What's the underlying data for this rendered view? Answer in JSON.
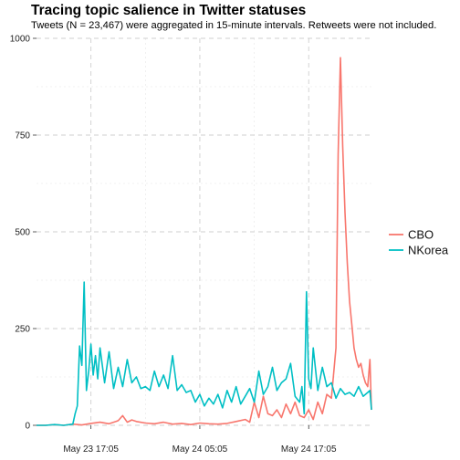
{
  "title": "Tracing topic salience in Twitter statuses",
  "subtitle": "Tweets (N = 23,467) were aggregated in 15-minute intervals. Retweets were not included.",
  "chart_data": {
    "type": "line",
    "title": "Tracing topic salience in Twitter statuses",
    "subtitle": "Tweets (N = 23,467) were aggregated in 15-minute intervals. Retweets were not included.",
    "xlabel": "",
    "ylabel": "",
    "ylim": [
      0,
      1000
    ],
    "xlim": [
      "2017-05-23 11:05",
      "2017-05-25 00:00"
    ],
    "y_ticks": [
      0,
      250,
      500,
      750,
      1000
    ],
    "y_tick_labels": [
      "0",
      "250",
      "500",
      "750",
      "1000"
    ],
    "x_ticks": [
      "2017-05-23 17:05",
      "2017-05-24 05:05",
      "2017-05-24 17:05"
    ],
    "x_tick_labels": [
      "May 23 17:05",
      "May 24 05:05",
      "May 24 17:05"
    ],
    "grid": true,
    "legend_position": "right",
    "series": [
      {
        "name": "CBO",
        "color": "#F8766D",
        "x": [
          "2017-05-23 11:05",
          "2017-05-23 12:05",
          "2017-05-23 13:05",
          "2017-05-23 14:05",
          "2017-05-23 15:05",
          "2017-05-23 16:05",
          "2017-05-23 17:05",
          "2017-05-23 18:05",
          "2017-05-23 19:05",
          "2017-05-23 20:05",
          "2017-05-23 20:35",
          "2017-05-23 21:05",
          "2017-05-23 21:35",
          "2017-05-23 22:05",
          "2017-05-23 23:05",
          "2017-05-24 00:05",
          "2017-05-24 01:05",
          "2017-05-24 02:05",
          "2017-05-24 03:05",
          "2017-05-24 04:05",
          "2017-05-24 05:05",
          "2017-05-24 06:05",
          "2017-05-24 07:05",
          "2017-05-24 08:05",
          "2017-05-24 09:05",
          "2017-05-24 10:05",
          "2017-05-24 10:35",
          "2017-05-24 11:05",
          "2017-05-24 11:35",
          "2017-05-24 12:05",
          "2017-05-24 12:35",
          "2017-05-24 13:05",
          "2017-05-24 13:35",
          "2017-05-24 14:05",
          "2017-05-24 14:35",
          "2017-05-24 15:05",
          "2017-05-24 15:35",
          "2017-05-24 16:05",
          "2017-05-24 16:35",
          "2017-05-24 17:05",
          "2017-05-24 17:35",
          "2017-05-24 18:05",
          "2017-05-24 18:35",
          "2017-05-24 19:05",
          "2017-05-24 19:35",
          "2017-05-24 20:05",
          "2017-05-24 20:20",
          "2017-05-24 20:35",
          "2017-05-24 20:50",
          "2017-05-24 21:05",
          "2017-05-24 21:20",
          "2017-05-24 21:35",
          "2017-05-24 21:50",
          "2017-05-24 22:05",
          "2017-05-24 22:20",
          "2017-05-24 22:35",
          "2017-05-24 22:50",
          "2017-05-24 23:05",
          "2017-05-24 23:20",
          "2017-05-24 23:35",
          "2017-05-24 23:50",
          "2017-05-25 00:00"
        ],
        "values": [
          0,
          0,
          2,
          0,
          3,
          1,
          5,
          8,
          4,
          12,
          25,
          8,
          14,
          10,
          6,
          4,
          8,
          3,
          5,
          2,
          6,
          4,
          3,
          5,
          10,
          15,
          8,
          60,
          20,
          75,
          30,
          25,
          40,
          20,
          55,
          30,
          60,
          25,
          20,
          40,
          15,
          60,
          30,
          80,
          70,
          200,
          700,
          950,
          720,
          550,
          420,
          320,
          260,
          200,
          170,
          150,
          160,
          130,
          110,
          100,
          170,
          40
        ]
      },
      {
        "name": "NKorea",
        "color": "#00BFC4",
        "x": [
          "2017-05-23 11:05",
          "2017-05-23 12:05",
          "2017-05-23 13:05",
          "2017-05-23 14:05",
          "2017-05-23 15:05",
          "2017-05-23 15:20",
          "2017-05-23 15:35",
          "2017-05-23 15:50",
          "2017-05-23 16:05",
          "2017-05-23 16:20",
          "2017-05-23 16:35",
          "2017-05-23 16:50",
          "2017-05-23 17:05",
          "2017-05-23 17:20",
          "2017-05-23 17:35",
          "2017-05-23 17:50",
          "2017-05-23 18:05",
          "2017-05-23 18:35",
          "2017-05-23 19:05",
          "2017-05-23 19:35",
          "2017-05-23 20:05",
          "2017-05-23 20:35",
          "2017-05-23 21:05",
          "2017-05-23 21:35",
          "2017-05-23 22:05",
          "2017-05-23 22:35",
          "2017-05-23 23:05",
          "2017-05-23 23:35",
          "2017-05-24 00:05",
          "2017-05-24 00:35",
          "2017-05-24 01:05",
          "2017-05-24 01:35",
          "2017-05-24 02:05",
          "2017-05-24 02:35",
          "2017-05-24 03:05",
          "2017-05-24 03:35",
          "2017-05-24 04:05",
          "2017-05-24 04:35",
          "2017-05-24 05:05",
          "2017-05-24 05:35",
          "2017-05-24 06:05",
          "2017-05-24 06:35",
          "2017-05-24 07:05",
          "2017-05-24 07:35",
          "2017-05-24 08:05",
          "2017-05-24 08:35",
          "2017-05-24 09:05",
          "2017-05-24 09:35",
          "2017-05-24 10:05",
          "2017-05-24 10:35",
          "2017-05-24 11:05",
          "2017-05-24 11:35",
          "2017-05-24 12:05",
          "2017-05-24 12:35",
          "2017-05-24 13:05",
          "2017-05-24 13:35",
          "2017-05-24 14:05",
          "2017-05-24 14:35",
          "2017-05-24 15:05",
          "2017-05-24 15:35",
          "2017-05-24 16:05",
          "2017-05-24 16:20",
          "2017-05-24 16:35",
          "2017-05-24 16:50",
          "2017-05-24 17:05",
          "2017-05-24 17:20",
          "2017-05-24 17:35",
          "2017-05-24 18:05",
          "2017-05-24 18:35",
          "2017-05-24 19:05",
          "2017-05-24 19:35",
          "2017-05-24 20:05",
          "2017-05-24 20:35",
          "2017-05-24 21:05",
          "2017-05-24 21:35",
          "2017-05-24 22:05",
          "2017-05-24 22:35",
          "2017-05-24 23:05",
          "2017-05-24 23:35",
          "2017-05-24 23:50",
          "2017-05-25 00:00"
        ],
        "values": [
          0,
          0,
          2,
          0,
          3,
          30,
          50,
          205,
          155,
          370,
          90,
          140,
          210,
          130,
          180,
          120,
          200,
          110,
          190,
          95,
          150,
          100,
          170,
          110,
          125,
          95,
          100,
          90,
          140,
          100,
          130,
          95,
          180,
          90,
          105,
          85,
          90,
          60,
          80,
          50,
          70,
          55,
          80,
          45,
          90,
          60,
          100,
          55,
          75,
          95,
          60,
          140,
          80,
          100,
          150,
          90,
          110,
          120,
          160,
          75,
          60,
          100,
          30,
          345,
          120,
          95,
          200,
          90,
          150,
          100,
          110,
          70,
          95,
          80,
          85,
          75,
          100,
          75,
          85,
          90,
          40
        ]
      }
    ]
  }
}
